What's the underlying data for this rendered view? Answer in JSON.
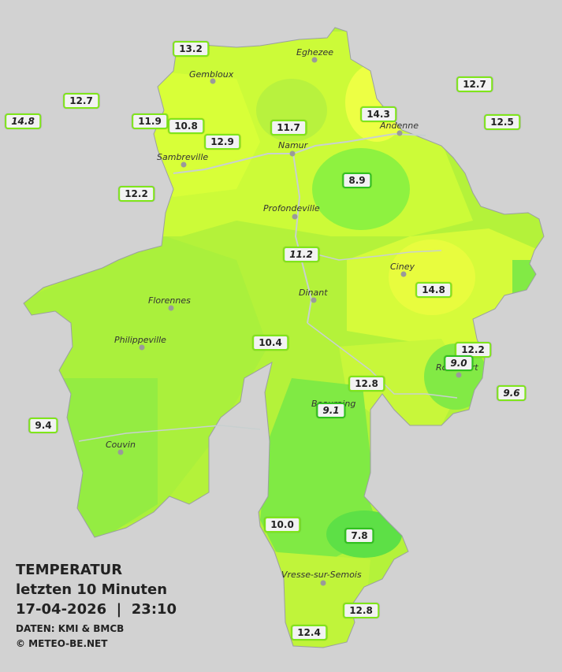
{
  "caption": {
    "title": "TEMPERATUR",
    "subtitle": "letzten 10 Minuten",
    "datetime": "17-04-2026  |  23:10",
    "source": "DATEN: KMI & BMCB",
    "copyright": "© METEO-BE.NET"
  },
  "cities": [
    "Eghezee",
    "Gembloux",
    "Andenne",
    "Namur",
    "Sambreville",
    "Profondeville",
    "Ciney",
    "Dinant",
    "Florennes",
    "Philippeville",
    "Rochefort",
    "Beauraing",
    "Couvin",
    "Vresse-sur-Semois"
  ],
  "stations": [
    "13.2",
    "12.7",
    "14.8",
    "11.9",
    "10.8",
    "12.9",
    "11.7",
    "14.3",
    "12.7",
    "12.5",
    "8.9",
    "12.2",
    "11.2",
    "14.8",
    "10.4",
    "12.2",
    "9.0",
    "12.8",
    "9.6",
    "9.1",
    "9.4",
    "10.0",
    "7.8",
    "12.8",
    "12.4"
  ],
  "colors": {
    "background": "#d2d2d2",
    "light": "#d6ff3a",
    "mid": "#b4f23a",
    "dark": "#72e845",
    "warm": "#f0ff44"
  }
}
